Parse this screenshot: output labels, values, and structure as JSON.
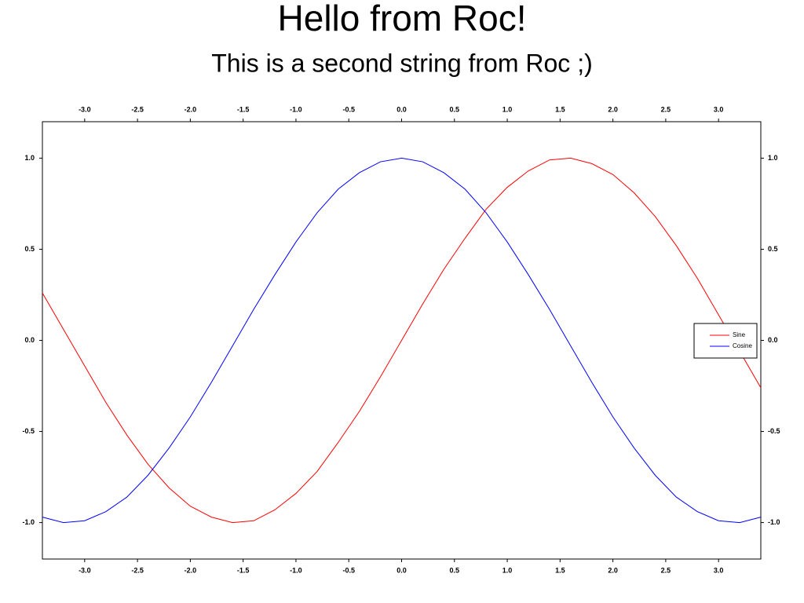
{
  "chart_data": {
    "type": "line",
    "title": "Hello from Roc!",
    "subtitle": "This is a second string from Roc ;)",
    "x": [
      -3.4,
      -3.2,
      -3.0,
      -2.8,
      -2.6,
      -2.4,
      -2.2,
      -2.0,
      -1.8,
      -1.6,
      -1.4,
      -1.2,
      -1.0,
      -0.8,
      -0.6,
      -0.4,
      -0.2,
      0,
      0.2,
      0.4,
      0.6,
      0.8,
      1.0,
      1.2,
      1.4,
      1.6,
      1.8,
      2.0,
      2.2,
      2.4,
      2.6,
      2.8,
      3.0,
      3.2,
      3.4
    ],
    "series": [
      {
        "name": "Sine",
        "color": "#ff0000",
        "values": [
          0.26,
          0.06,
          -0.14,
          -0.34,
          -0.52,
          -0.68,
          -0.81,
          -0.91,
          -0.97,
          -1.0,
          -0.99,
          -0.93,
          -0.84,
          -0.72,
          -0.56,
          -0.39,
          -0.2,
          0,
          0.2,
          0.39,
          0.56,
          0.72,
          0.84,
          0.93,
          0.99,
          1.0,
          0.97,
          0.91,
          0.81,
          0.68,
          0.52,
          0.34,
          0.14,
          -0.06,
          -0.26
        ]
      },
      {
        "name": "Cosine",
        "color": "#0000ff",
        "values": [
          -0.97,
          -1.0,
          -0.99,
          -0.94,
          -0.86,
          -0.74,
          -0.59,
          -0.42,
          -0.23,
          -0.03,
          0.17,
          0.36,
          0.54,
          0.7,
          0.83,
          0.92,
          0.98,
          1.0,
          0.98,
          0.92,
          0.83,
          0.7,
          0.54,
          0.36,
          0.17,
          -0.03,
          -0.23,
          -0.42,
          -0.59,
          -0.74,
          -0.86,
          -0.94,
          -0.99,
          -1.0,
          -0.97
        ]
      }
    ],
    "xlim": [
      -3.4,
      3.4
    ],
    "ylim": [
      -1.2,
      1.2
    ],
    "xticks": [
      {
        "value": -3,
        "label": "-3.0"
      },
      -2.5,
      {
        "value": -2,
        "label": "-2.0"
      },
      -1.5,
      {
        "value": -1,
        "label": "-1.0"
      },
      -0.5,
      {
        "value": 0,
        "label": "0.0"
      },
      0.5,
      {
        "value": 1,
        "label": "1.0"
      },
      1.5,
      {
        "value": 2,
        "label": "2.0"
      },
      2.5,
      {
        "value": 3,
        "label": "3.0"
      }
    ],
    "yticks": [
      {
        "value": -1,
        "label": "-1.0"
      },
      -0.5,
      {
        "value": 0,
        "label": "0.0"
      },
      0.5,
      {
        "value": 1,
        "label": "1.0"
      }
    ],
    "grid": false,
    "legend": "right"
  }
}
